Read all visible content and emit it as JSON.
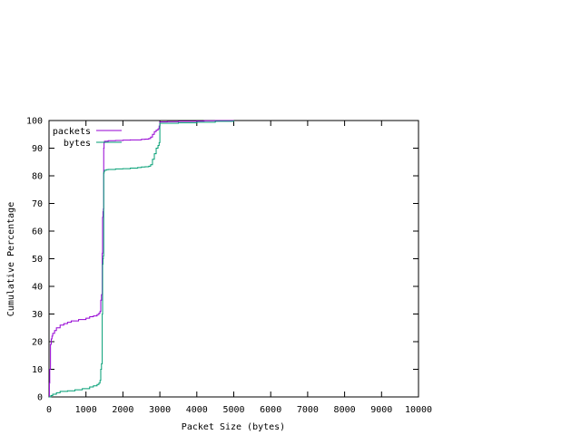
{
  "chart_data": {
    "type": "line",
    "xlabel": "Packet Size (bytes)",
    "ylabel": "Cumulative Percentage",
    "xlim": [
      0,
      10000
    ],
    "ylim": [
      0,
      100
    ],
    "xticks": [
      "0",
      "1000",
      "2000",
      "3000",
      "4000",
      "5000",
      "6000",
      "7000",
      "8000",
      "9000",
      "10000"
    ],
    "yticks": [
      "0",
      "10",
      "20",
      "30",
      "40",
      "50",
      "60",
      "70",
      "80",
      "90",
      "100"
    ],
    "legend_position": "top-left",
    "grid": false,
    "series": [
      {
        "name": "packets",
        "color": "#9400d3",
        "x": [
          0,
          10,
          20,
          40,
          60,
          80,
          100,
          150,
          200,
          300,
          400,
          500,
          600,
          800,
          1000,
          1100,
          1200,
          1300,
          1350,
          1380,
          1400,
          1420,
          1440,
          1450,
          1460,
          1470,
          1480,
          1490,
          1500,
          1600,
          1800,
          2000,
          2200,
          2500,
          2600,
          2700,
          2750,
          2800,
          2850,
          2900,
          2950,
          2980,
          3000,
          3200,
          3500,
          4000,
          4200,
          4500,
          5000
        ],
        "y": [
          0,
          5,
          10,
          19,
          21,
          22,
          23,
          24,
          25,
          26,
          26.5,
          27,
          27.5,
          28,
          28.5,
          29,
          29.3,
          29.8,
          30.3,
          31,
          35,
          37,
          52,
          65,
          67,
          68,
          90,
          92,
          92.5,
          92.7,
          92.8,
          92.9,
          93,
          93.2,
          93.3,
          93.5,
          94,
          95,
          96,
          96.5,
          97,
          98,
          99.5,
          99.6,
          99.7,
          99.8,
          99.9,
          99.95,
          100
        ]
      },
      {
        "name": "bytes",
        "color": "#009e73",
        "x": [
          0,
          50,
          100,
          200,
          300,
          500,
          700,
          900,
          1100,
          1200,
          1300,
          1350,
          1380,
          1400,
          1420,
          1440,
          1450,
          1460,
          1470,
          1480,
          1490,
          1500,
          1550,
          1600,
          1800,
          2000,
          2200,
          2400,
          2500,
          2600,
          2700,
          2750,
          2800,
          2850,
          2900,
          2950,
          2980,
          3000,
          3500,
          4000,
          4500,
          5000
        ],
        "y": [
          0,
          0.5,
          1,
          1.5,
          2,
          2.2,
          2.6,
          3,
          3.6,
          4,
          4.5,
          5,
          6,
          10,
          12,
          30,
          48,
          50,
          51,
          81,
          81.5,
          82,
          82.2,
          82.3,
          82.5,
          82.6,
          82.8,
          83,
          83.2,
          83.3,
          83.5,
          84,
          86,
          88,
          90,
          91,
          92,
          99,
          99.2,
          99.4,
          99.7,
          100
        ]
      }
    ]
  }
}
